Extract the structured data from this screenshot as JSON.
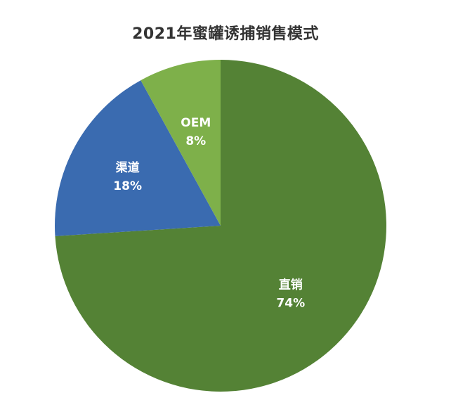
{
  "chart_data": {
    "type": "pie",
    "title": "2021年蜜罐诱捕销售模式",
    "slices": [
      {
        "label": "直销",
        "value": 74,
        "percent_label": "74%",
        "color": "#548235"
      },
      {
        "label": "渠道",
        "value": 18,
        "percent_label": "18%",
        "color": "#3a6bb0"
      },
      {
        "label": "OEM",
        "value": 8,
        "percent_label": "8%",
        "color": "#7eb04a"
      }
    ],
    "start_position": "top, clockwise"
  }
}
